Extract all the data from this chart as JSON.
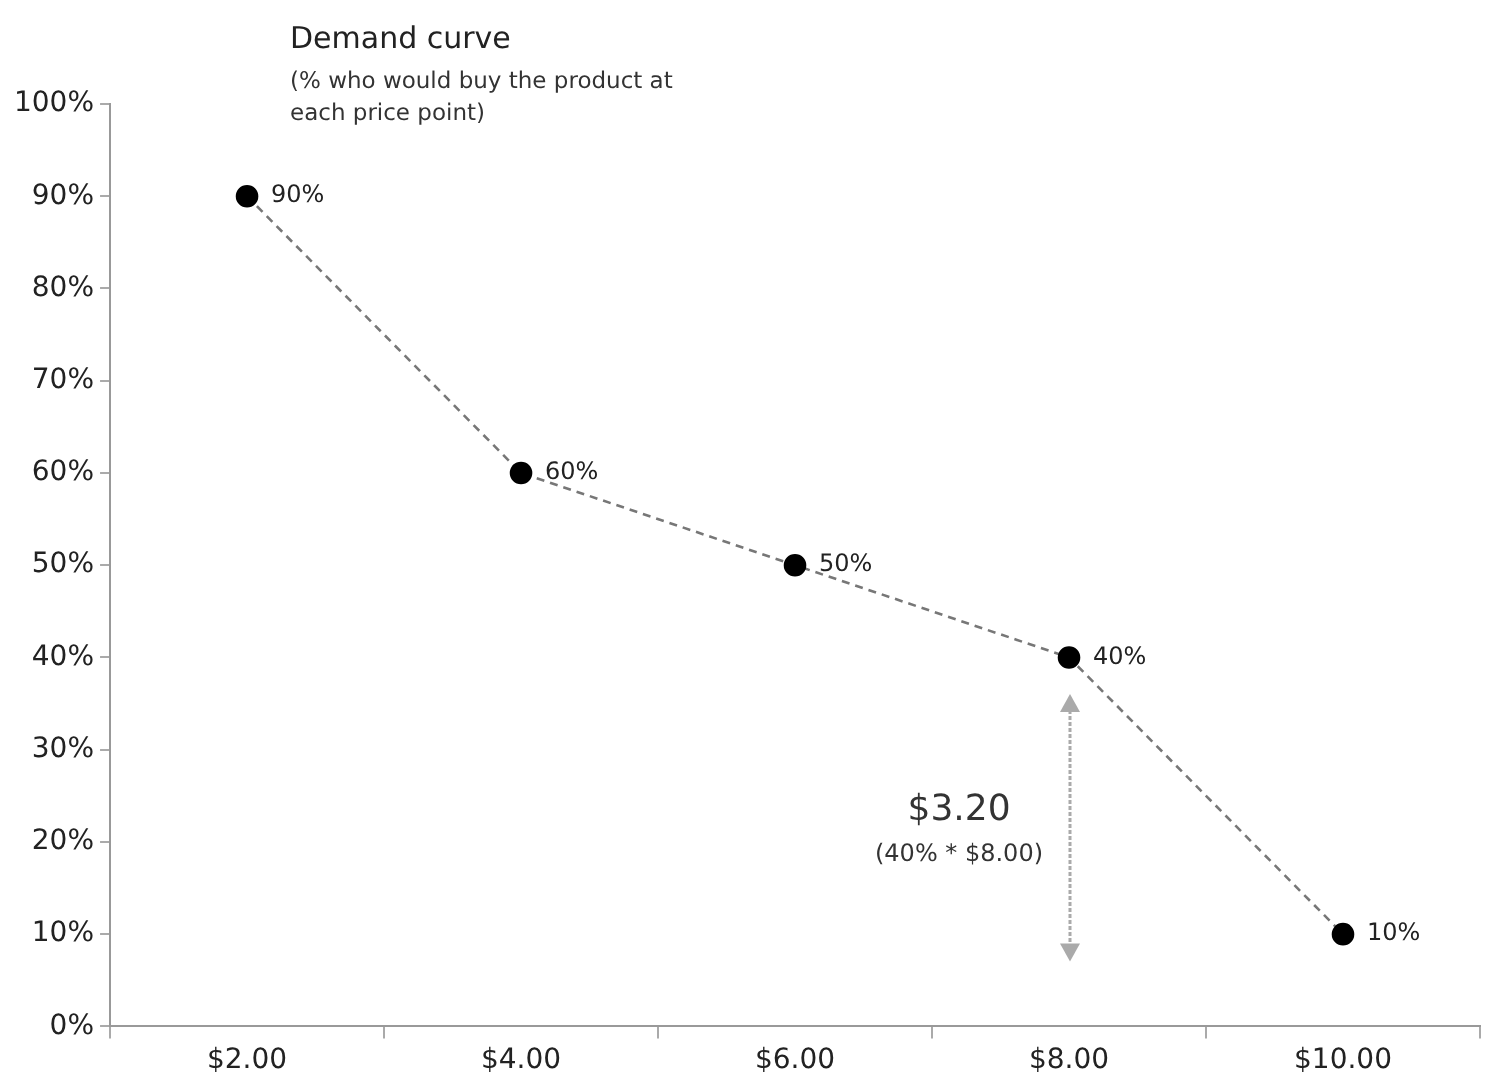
{
  "chart_data": {
    "type": "line",
    "title": "Demand curve",
    "subtitle": "(% who would buy the product at each price point)",
    "categories": [
      "$2.00",
      "$4.00",
      "$6.00",
      "$8.00",
      "$10.00"
    ],
    "values": [
      90,
      60,
      50,
      40,
      10
    ],
    "value_labels": [
      "90%",
      "60%",
      "50%",
      "40%",
      "10%"
    ],
    "color": "#000000",
    "ylim": [
      0,
      100
    ],
    "yticks": [
      {
        "value": 0,
        "label": "0%"
      },
      {
        "value": 10,
        "label": "10%"
      },
      {
        "value": 20,
        "label": "20%"
      },
      {
        "value": 30,
        "label": "30%"
      },
      {
        "value": 40,
        "label": "40%"
      },
      {
        "value": 50,
        "label": "50%"
      },
      {
        "value": 60,
        "label": "60%"
      },
      {
        "value": 70,
        "label": "70%"
      },
      {
        "value": 80,
        "label": "80%"
      },
      {
        "value": 90,
        "label": "90%"
      },
      {
        "value": 100,
        "label": "100%"
      }
    ],
    "annotations": [
      "$3.20",
      "(40% * $8.00)"
    ],
    "grid": false,
    "legend": false,
    "marker": "circle",
    "line_style": "dashed"
  }
}
